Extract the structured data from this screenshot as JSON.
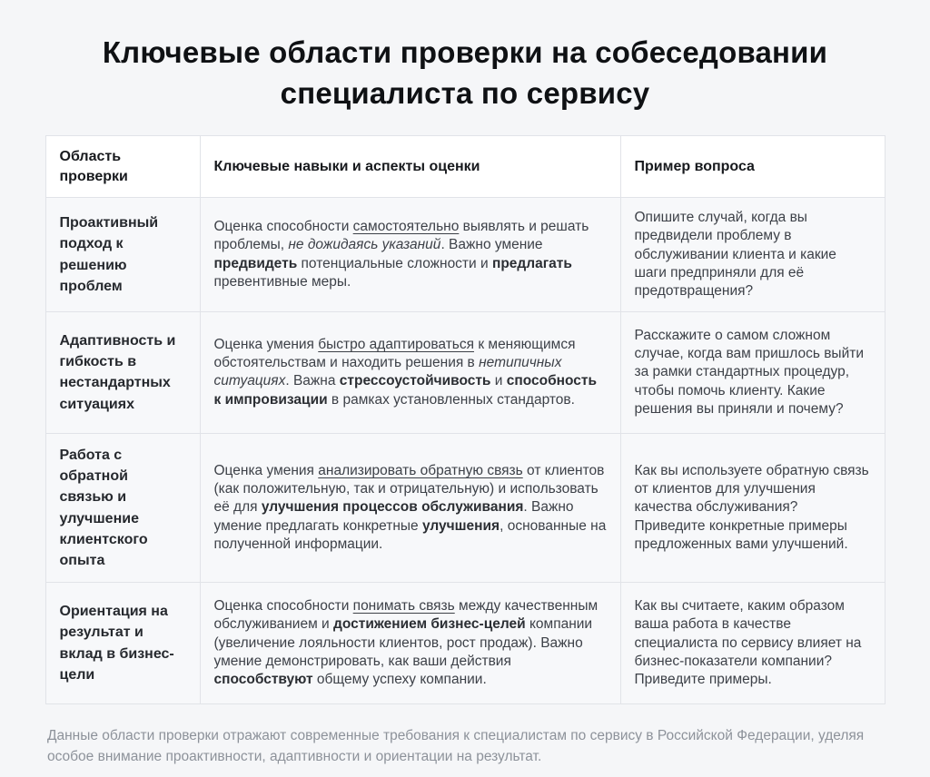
{
  "page": {
    "title": "Ключевые области проверки на собеседовании специалиста по сервису"
  },
  "table": {
    "headers": [
      "Область проверки",
      "Ключевые навыки и аспекты оценки",
      "Пример вопроса"
    ],
    "rows": [
      {
        "area": "Проактивный подход к решению проблем",
        "skills": [
          {
            "t": "Оценка способности "
          },
          {
            "t": "самостоятельно",
            "u": true
          },
          {
            "t": " выявлять и решать проблемы, "
          },
          {
            "t": "не дожидаясь указаний",
            "i": true
          },
          {
            "t": ". Важно умение "
          },
          {
            "t": "предвидеть",
            "b": true
          },
          {
            "t": " потенциальные сложности и "
          },
          {
            "t": "предлагать",
            "b": true
          },
          {
            "t": " превентивные меры."
          }
        ],
        "question": "Опишите случай, когда вы предвидели проблему в обслуживании клиента и какие шаги предприняли для её предотвращения?"
      },
      {
        "area": "Адаптивность и гибкость в нестандартных ситуациях",
        "skills": [
          {
            "t": "Оценка умения "
          },
          {
            "t": "быстро адаптироваться",
            "u": true
          },
          {
            "t": " к меняющимся обстоятельствам и находить решения в "
          },
          {
            "t": "нетипичных ситуациях",
            "i": true
          },
          {
            "t": ". Важна "
          },
          {
            "t": "стрессоустойчивость",
            "b": true
          },
          {
            "t": " и "
          },
          {
            "t": "способность к импровизации",
            "b": true
          },
          {
            "t": " в рамках установленных стандартов."
          }
        ],
        "question": "Расскажите о самом сложном случае, когда вам пришлось выйти за рамки стандартных процедур, чтобы помочь клиенту. Какие решения вы приняли и почему?"
      },
      {
        "area": "Работа с обратной связью и улучшение клиентского опыта",
        "skills": [
          {
            "t": "Оценка умения "
          },
          {
            "t": "анализировать обратную связь",
            "u": true
          },
          {
            "t": " от клиентов (как положительную, так и отрицательную) и использовать её для "
          },
          {
            "t": "улучшения процессов обслуживания",
            "b": true
          },
          {
            "t": ". Важно умение предлагать конкретные "
          },
          {
            "t": "улучшения",
            "b": true
          },
          {
            "t": ", основанные на полученной информации."
          }
        ],
        "question": "Как вы используете обратную связь от клиентов для улучшения качества обслуживания? Приведите конкретные примеры предложенных вами улучшений."
      },
      {
        "area": "Ориентация на результат и вклад в бизнес-цели",
        "skills": [
          {
            "t": "Оценка способности "
          },
          {
            "t": "понимать связь",
            "u": true
          },
          {
            "t": " между качественным обслуживанием и "
          },
          {
            "t": "достижением бизнес-целей",
            "b": true
          },
          {
            "t": " компании (увеличение лояльности клиентов, рост продаж). Важно умение демонстрировать, как ваши действия "
          },
          {
            "t": "способствуют",
            "b": true
          },
          {
            "t": " общему успеху компании."
          }
        ],
        "question": "Как вы считаете, каким образом ваша работа в качестве специалиста по сервису влияет на бизнес-показатели компании? Приведите примеры."
      }
    ]
  },
  "footer": {
    "note": "Данные области проверки отражают современные требования к специалистам по сервису в Российской Федерации, уделяя особое внимание проактивности, адаптивности и ориентации на результат."
  }
}
